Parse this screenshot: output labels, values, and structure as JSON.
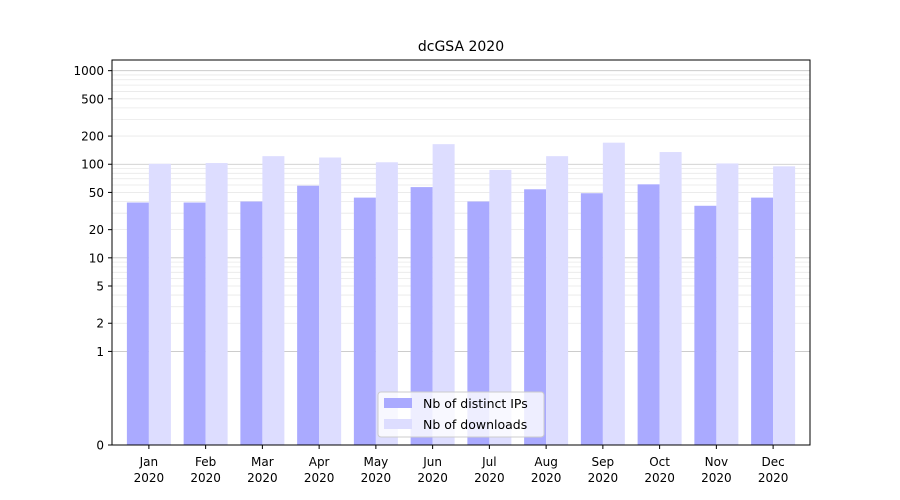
{
  "chart_data": {
    "type": "bar",
    "title": "dcGSA 2020",
    "xlabel": "",
    "ylabel": "",
    "y_scale": "symlog",
    "ylim": [
      0,
      1300
    ],
    "y_ticks": [
      0,
      1,
      2,
      5,
      10,
      20,
      50,
      100,
      200,
      500,
      1000
    ],
    "y_tick_labels": [
      "0",
      "1",
      "2",
      "5",
      "10",
      "20",
      "50",
      "100",
      "200",
      "500",
      "1000"
    ],
    "categories": [
      "Jan",
      "Feb",
      "Mar",
      "Apr",
      "May",
      "Jun",
      "Jul",
      "Aug",
      "Sep",
      "Oct",
      "Nov",
      "Dec"
    ],
    "category_sublabel": "2020",
    "series": [
      {
        "name": "Nb of distinct IPs",
        "color": "#aaaaff",
        "values": [
          39,
          39,
          40,
          59,
          44,
          57,
          40,
          54,
          49,
          61,
          36,
          44
        ]
      },
      {
        "name": "Nb of downloads",
        "color": "#ddddff",
        "values": [
          101,
          103,
          122,
          118,
          105,
          164,
          87,
          122,
          170,
          135,
          102,
          95
        ]
      }
    ],
    "grid": true,
    "legend_position": "bottom-center"
  }
}
